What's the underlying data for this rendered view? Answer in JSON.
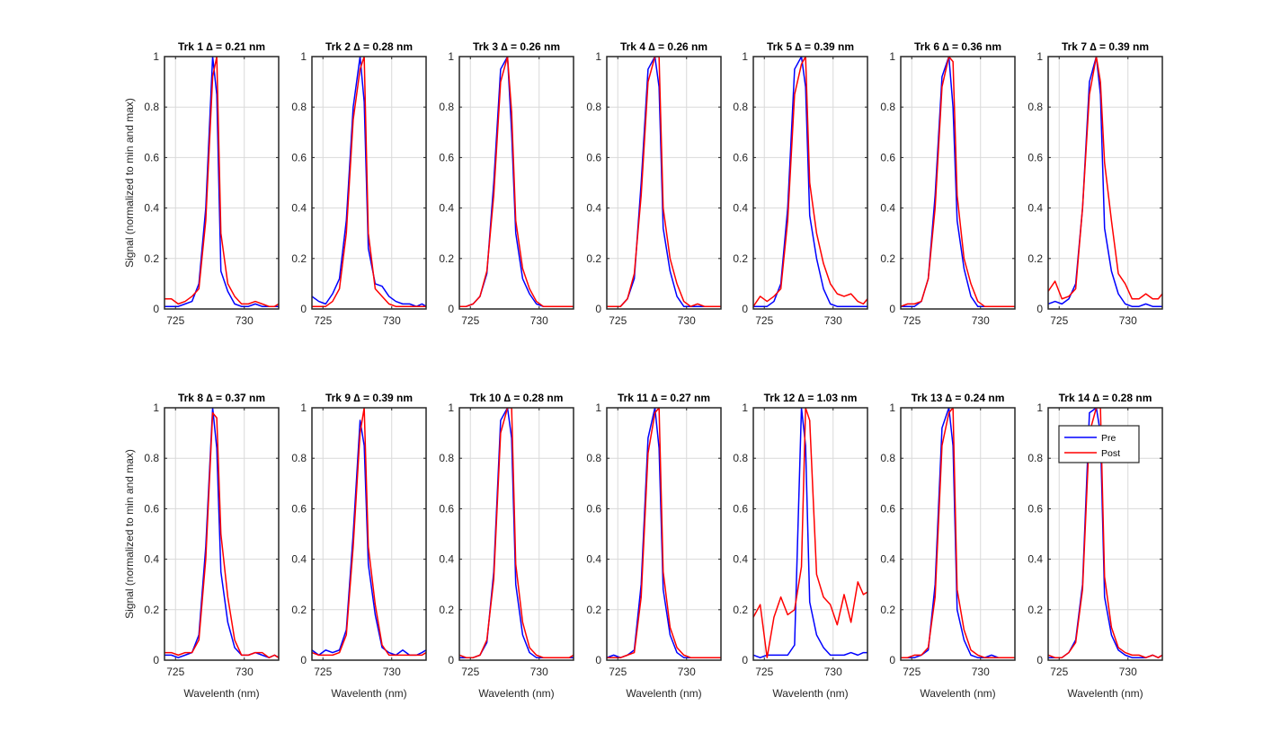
{
  "figure_title": "",
  "chart_data": {
    "type": "line",
    "layout": "2 rows x 7 columns of subplots",
    "xlabel": "Wavelenth (nm)",
    "ylabel": "Signal (normalized to min and max)",
    "xlim": [
      724.2,
      732.5
    ],
    "ylim": [
      0,
      1
    ],
    "xticks": [
      725,
      730
    ],
    "yticks": [
      0,
      0.2,
      0.4,
      0.6,
      0.8,
      1
    ],
    "ytick_labels": [
      "0",
      "0.2",
      "0.4",
      "0.6",
      "0.8",
      "1"
    ],
    "grid": true,
    "legend": {
      "location": "top-right of subplot 14",
      "entries": [
        "Pre",
        "Post"
      ]
    },
    "colors": {
      "Pre": "#0000ff",
      "Post": "#ff0000",
      "grid": "#d9d9d9",
      "axis": "#262626"
    },
    "x": [
      724.2,
      724.7,
      725.2,
      725.7,
      726.2,
      726.7,
      727.2,
      727.7,
      728.0,
      728.3,
      728.8,
      729.3,
      729.8,
      730.3,
      730.8,
      731.3,
      731.8,
      732.2,
      732.5
    ],
    "panels": [
      {
        "title": "Trk 1 ∆ = 0.21 nm",
        "series": [
          {
            "name": "Pre",
            "values": [
              0.01,
              0.01,
              0.01,
              0.02,
              0.03,
              0.1,
              0.4,
              1.0,
              0.85,
              0.15,
              0.07,
              0.02,
              0.01,
              0.01,
              0.02,
              0.01,
              0.01,
              0.01,
              0.01
            ]
          },
          {
            "name": "Post",
            "values": [
              0.04,
              0.04,
              0.02,
              0.03,
              0.05,
              0.08,
              0.35,
              0.92,
              1.0,
              0.3,
              0.1,
              0.05,
              0.02,
              0.02,
              0.03,
              0.02,
              0.01,
              0.01,
              0.02
            ]
          }
        ]
      },
      {
        "title": "Trk 2 ∆ = 0.28 nm",
        "series": [
          {
            "name": "Pre",
            "values": [
              0.05,
              0.03,
              0.02,
              0.06,
              0.12,
              0.35,
              0.8,
              1.0,
              0.82,
              0.24,
              0.1,
              0.09,
              0.05,
              0.03,
              0.02,
              0.02,
              0.01,
              0.02,
              0.01
            ]
          },
          {
            "name": "Post",
            "values": [
              0.01,
              0.01,
              0.01,
              0.03,
              0.08,
              0.3,
              0.75,
              0.95,
              1.0,
              0.3,
              0.08,
              0.05,
              0.02,
              0.01,
              0.01,
              0.01,
              0.01,
              0.01,
              0.01
            ]
          }
        ]
      },
      {
        "title": "Trk 3 ∆ = 0.26 nm",
        "series": [
          {
            "name": "Pre",
            "values": [
              0.01,
              0.01,
              0.02,
              0.05,
              0.14,
              0.5,
              0.95,
              1.0,
              0.7,
              0.3,
              0.12,
              0.06,
              0.02,
              0.01,
              0.01,
              0.01,
              0.01,
              0.01,
              0.01
            ]
          },
          {
            "name": "Post",
            "values": [
              0.01,
              0.01,
              0.02,
              0.05,
              0.15,
              0.45,
              0.9,
              1.0,
              0.78,
              0.35,
              0.16,
              0.08,
              0.03,
              0.01,
              0.01,
              0.01,
              0.01,
              0.01,
              0.01
            ]
          }
        ]
      },
      {
        "title": "Trk 4 ∆ = 0.26 nm",
        "series": [
          {
            "name": "Pre",
            "values": [
              0.01,
              0.01,
              0.01,
              0.04,
              0.12,
              0.5,
              0.95,
              1.0,
              0.88,
              0.32,
              0.15,
              0.05,
              0.01,
              0.01,
              0.01,
              0.01,
              0.01,
              0.01,
              0.01
            ]
          },
          {
            "name": "Post",
            "values": [
              0.01,
              0.01,
              0.01,
              0.04,
              0.14,
              0.45,
              0.9,
              1.0,
              1.0,
              0.4,
              0.2,
              0.1,
              0.03,
              0.01,
              0.02,
              0.01,
              0.01,
              0.01,
              0.01
            ]
          }
        ]
      },
      {
        "title": "Trk 5 ∆ = 0.39 nm",
        "series": [
          {
            "name": "Pre",
            "values": [
              0.01,
              0.01,
              0.01,
              0.03,
              0.1,
              0.4,
              0.95,
              1.0,
              0.88,
              0.37,
              0.2,
              0.08,
              0.02,
              0.01,
              0.01,
              0.01,
              0.01,
              0.01,
              0.01
            ]
          },
          {
            "name": "Post",
            "values": [
              0.01,
              0.05,
              0.03,
              0.05,
              0.08,
              0.35,
              0.85,
              0.97,
              1.0,
              0.5,
              0.3,
              0.18,
              0.1,
              0.06,
              0.05,
              0.06,
              0.03,
              0.02,
              0.04
            ]
          }
        ]
      },
      {
        "title": "Trk 6 ∆ = 0.36 nm",
        "series": [
          {
            "name": "Pre",
            "values": [
              0.01,
              0.01,
              0.01,
              0.03,
              0.12,
              0.45,
              0.92,
              1.0,
              0.8,
              0.35,
              0.16,
              0.05,
              0.01,
              0.01,
              0.01,
              0.01,
              0.01,
              0.01,
              0.01
            ]
          },
          {
            "name": "Post",
            "values": [
              0.01,
              0.02,
              0.02,
              0.03,
              0.12,
              0.4,
              0.88,
              1.0,
              0.98,
              0.45,
              0.2,
              0.1,
              0.03,
              0.01,
              0.01,
              0.01,
              0.01,
              0.01,
              0.01
            ]
          }
        ]
      },
      {
        "title": "Trk 7 ∆ = 0.39 nm",
        "series": [
          {
            "name": "Pre",
            "values": [
              0.02,
              0.03,
              0.02,
              0.04,
              0.1,
              0.4,
              0.9,
              1.0,
              0.85,
              0.32,
              0.15,
              0.06,
              0.02,
              0.01,
              0.01,
              0.02,
              0.01,
              0.01,
              0.01
            ]
          },
          {
            "name": "Post",
            "values": [
              0.07,
              0.11,
              0.04,
              0.05,
              0.08,
              0.4,
              0.85,
              1.0,
              0.9,
              0.58,
              0.35,
              0.14,
              0.1,
              0.04,
              0.04,
              0.06,
              0.04,
              0.04,
              0.06
            ]
          }
        ]
      },
      {
        "title": "Trk 8 ∆ = 0.37 nm",
        "series": [
          {
            "name": "Pre",
            "values": [
              0.02,
              0.02,
              0.01,
              0.02,
              0.03,
              0.1,
              0.45,
              1.0,
              0.84,
              0.35,
              0.15,
              0.05,
              0.02,
              0.02,
              0.03,
              0.02,
              0.01,
              0.02,
              0.01
            ]
          },
          {
            "name": "Post",
            "values": [
              0.03,
              0.03,
              0.02,
              0.03,
              0.03,
              0.08,
              0.4,
              0.98,
              0.96,
              0.5,
              0.25,
              0.08,
              0.02,
              0.02,
              0.03,
              0.03,
              0.01,
              0.02,
              0.01
            ]
          }
        ]
      },
      {
        "title": "Trk 9 ∆ = 0.39 nm",
        "series": [
          {
            "name": "Pre",
            "values": [
              0.04,
              0.02,
              0.04,
              0.03,
              0.04,
              0.12,
              0.5,
              0.95,
              0.85,
              0.38,
              0.18,
              0.05,
              0.03,
              0.02,
              0.04,
              0.02,
              0.02,
              0.03,
              0.04
            ]
          },
          {
            "name": "Post",
            "values": [
              0.03,
              0.02,
              0.02,
              0.02,
              0.03,
              0.1,
              0.45,
              0.9,
              1.0,
              0.45,
              0.22,
              0.06,
              0.02,
              0.02,
              0.02,
              0.02,
              0.02,
              0.02,
              0.03
            ]
          }
        ]
      },
      {
        "title": "Trk 10 ∆ = 0.28 nm",
        "series": [
          {
            "name": "Pre",
            "values": [
              0.01,
              0.01,
              0.01,
              0.02,
              0.07,
              0.35,
              0.95,
              1.0,
              0.88,
              0.3,
              0.1,
              0.03,
              0.01,
              0.01,
              0.01,
              0.01,
              0.01,
              0.01,
              0.01
            ]
          },
          {
            "name": "Post",
            "values": [
              0.02,
              0.01,
              0.01,
              0.02,
              0.08,
              0.32,
              0.9,
              1.0,
              1.0,
              0.38,
              0.15,
              0.05,
              0.02,
              0.01,
              0.01,
              0.01,
              0.01,
              0.01,
              0.02
            ]
          }
        ]
      },
      {
        "title": "Trk 11 ∆ = 0.27 nm",
        "series": [
          {
            "name": "Pre",
            "values": [
              0.01,
              0.02,
              0.01,
              0.02,
              0.04,
              0.3,
              0.88,
              1.0,
              0.84,
              0.28,
              0.1,
              0.03,
              0.01,
              0.01,
              0.01,
              0.01,
              0.01,
              0.01,
              0.01
            ]
          },
          {
            "name": "Post",
            "values": [
              0.01,
              0.01,
              0.01,
              0.02,
              0.03,
              0.25,
              0.82,
              0.98,
              1.0,
              0.35,
              0.13,
              0.05,
              0.02,
              0.01,
              0.01,
              0.01,
              0.01,
              0.01,
              0.01
            ]
          }
        ]
      },
      {
        "title": "Trk 12 ∆ = 1.03 nm",
        "series": [
          {
            "name": "Pre",
            "values": [
              0.02,
              0.01,
              0.02,
              0.02,
              0.02,
              0.02,
              0.06,
              1.0,
              0.85,
              0.23,
              0.1,
              0.05,
              0.02,
              0.02,
              0.02,
              0.03,
              0.02,
              0.03,
              0.03
            ]
          },
          {
            "name": "Post",
            "values": [
              0.17,
              0.22,
              0.01,
              0.17,
              0.25,
              0.18,
              0.2,
              0.37,
              1.0,
              0.95,
              0.34,
              0.25,
              0.22,
              0.14,
              0.26,
              0.15,
              0.31,
              0.26,
              0.27
            ]
          }
        ]
      },
      {
        "title": "Trk 13 ∆ = 0.24 nm",
        "series": [
          {
            "name": "Pre",
            "values": [
              0.01,
              0.01,
              0.01,
              0.02,
              0.04,
              0.3,
              0.92,
              1.0,
              0.85,
              0.2,
              0.08,
              0.02,
              0.01,
              0.01,
              0.02,
              0.01,
              0.01,
              0.01,
              0.01
            ]
          },
          {
            "name": "Post",
            "values": [
              0.01,
              0.01,
              0.02,
              0.02,
              0.05,
              0.25,
              0.85,
              0.98,
              1.0,
              0.28,
              0.12,
              0.04,
              0.02,
              0.01,
              0.01,
              0.01,
              0.01,
              0.01,
              0.01
            ]
          }
        ]
      },
      {
        "title": "Trk 14 ∆ = 0.28 nm",
        "series": [
          {
            "name": "Pre",
            "values": [
              0.01,
              0.01,
              0.01,
              0.03,
              0.08,
              0.3,
              0.98,
              1.0,
              0.9,
              0.25,
              0.1,
              0.04,
              0.02,
              0.01,
              0.01,
              0.01,
              0.02,
              0.01,
              0.02
            ]
          },
          {
            "name": "Post",
            "values": [
              0.02,
              0.01,
              0.01,
              0.03,
              0.07,
              0.28,
              0.9,
              1.0,
              1.0,
              0.33,
              0.13,
              0.05,
              0.03,
              0.02,
              0.02,
              0.01,
              0.02,
              0.01,
              0.02
            ]
          }
        ]
      }
    ]
  }
}
